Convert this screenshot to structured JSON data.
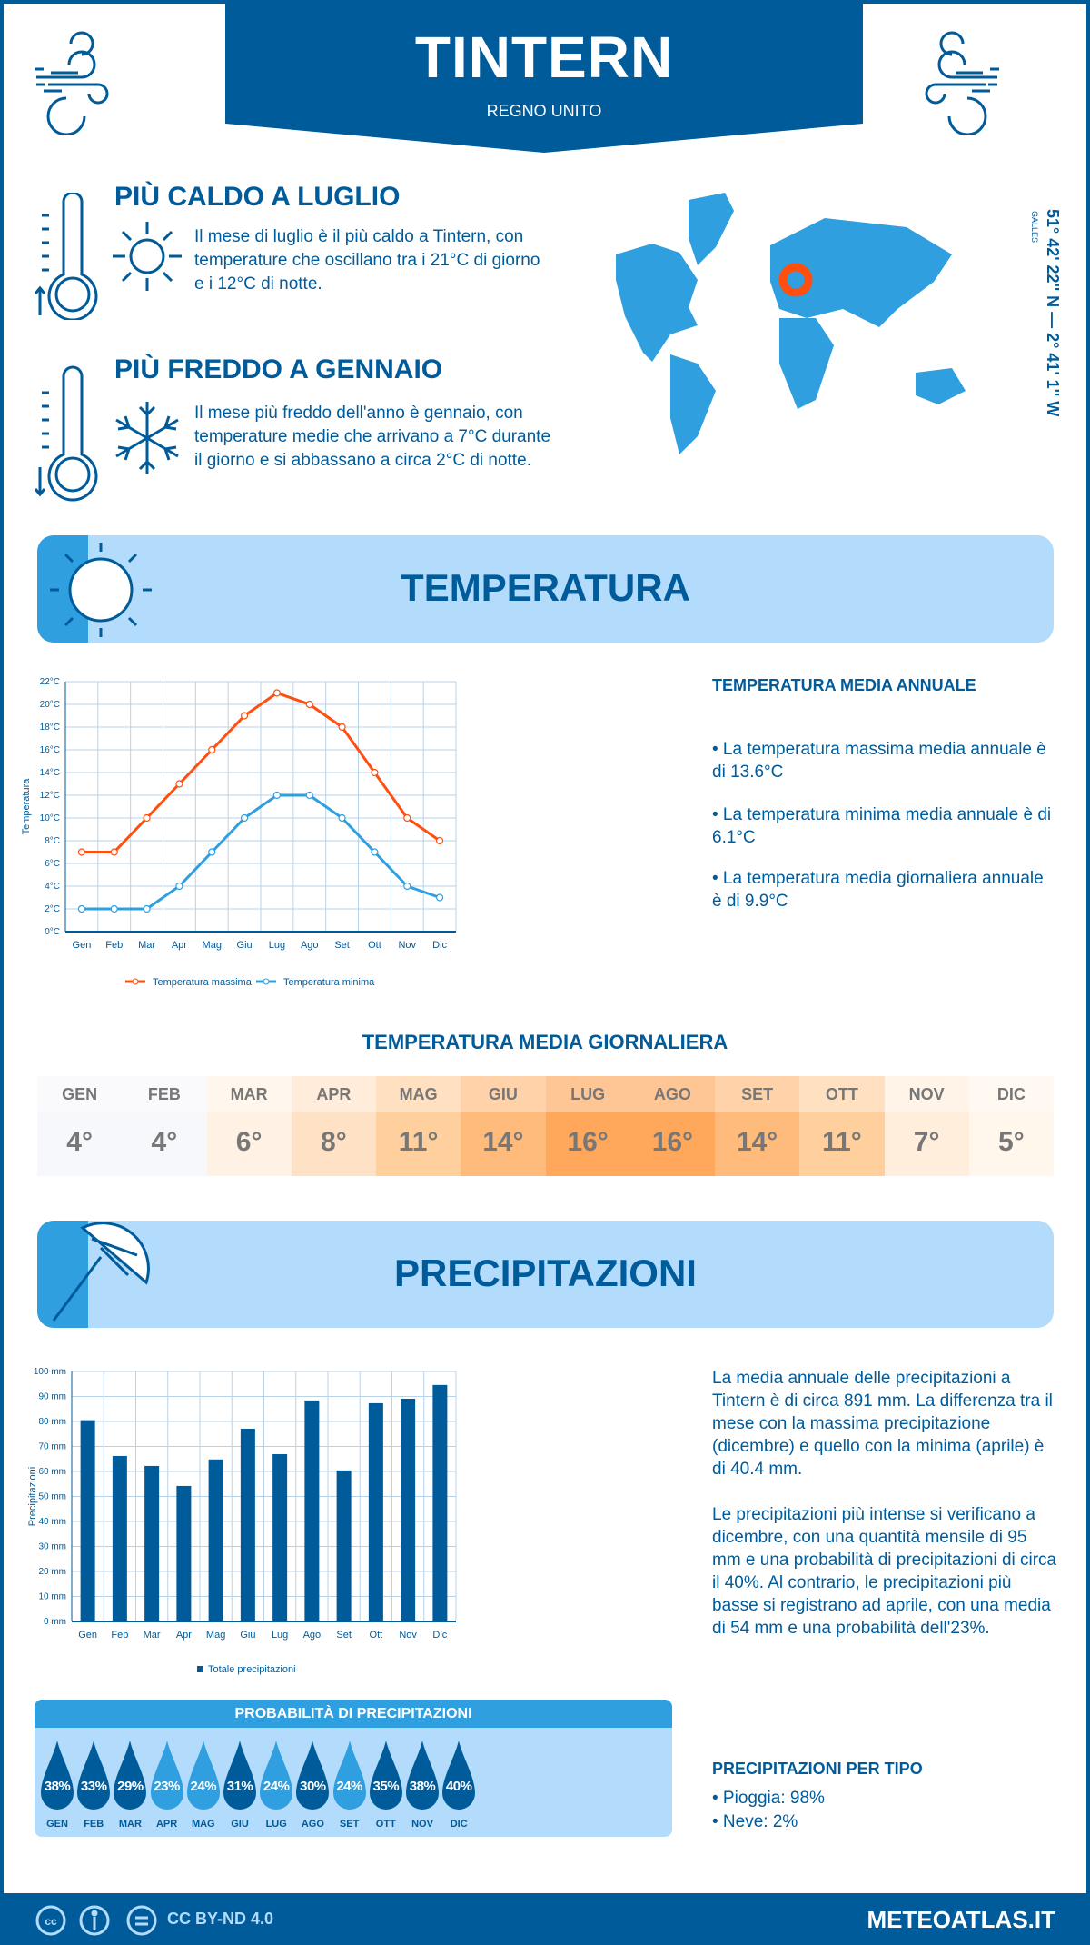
{
  "header": {
    "title": "TINTERN",
    "subtitle": "REGNO UNITO"
  },
  "highlights": {
    "hot": {
      "title": "PIÙ CALDO A LUGLIO",
      "text": "Il mese di luglio è il più caldo a Tintern, con temperature che oscillano tra i 21°C di giorno e i 12°C di notte."
    },
    "cold": {
      "title": "PIÙ FREDDO A GENNAIO",
      "text": "Il mese più freddo dell'anno è gennaio, con temperature medie che arrivano a 7°C durante il giorno e si abbassano a circa 2°C di notte."
    }
  },
  "location": {
    "coordinates": "51° 42' 22'' N — 2° 41' 1'' W",
    "region": "GALLES"
  },
  "temperature": {
    "section_title": "TEMPERATURA",
    "annual_title": "TEMPERATURA MEDIA ANNUALE",
    "annual_items": [
      "• La temperatura massima media annuale è di 13.6°C",
      "• La temperatura minima media annuale è di 6.1°C",
      "• La temperatura media giornaliera annuale è di 9.9°C"
    ],
    "daily_title": "TEMPERATURA MEDIA GIORNALIERA",
    "daily": [
      {
        "month": "GEN",
        "value": "4°",
        "color": "#f7f8fc"
      },
      {
        "month": "FEB",
        "value": "4°",
        "color": "#f7f8fc"
      },
      {
        "month": "MAR",
        "value": "6°",
        "color": "#fff2e4"
      },
      {
        "month": "APR",
        "value": "8°",
        "color": "#ffe2c6"
      },
      {
        "month": "MAG",
        "value": "11°",
        "color": "#ffd09e"
      },
      {
        "month": "GIU",
        "value": "14°",
        "color": "#ffbb7c"
      },
      {
        "month": "LUG",
        "value": "16°",
        "color": "#ffa85c"
      },
      {
        "month": "AGO",
        "value": "16°",
        "color": "#ffa85c"
      },
      {
        "month": "SET",
        "value": "14°",
        "color": "#ffbb7c"
      },
      {
        "month": "OTT",
        "value": "11°",
        "color": "#ffd09e"
      },
      {
        "month": "NOV",
        "value": "7°",
        "color": "#ffeedb"
      },
      {
        "month": "DIC",
        "value": "5°",
        "color": "#fff6ec"
      }
    ]
  },
  "precipitation": {
    "section_title": "PRECIPITAZIONI",
    "summary": "La media annuale delle precipitazioni a Tintern è di circa 891 mm. La differenza tra il mese con la massima precipitazione (dicembre) e quello con la minima (aprile) è di 40.4 mm.",
    "detail": "Le precipitazioni più intense si verificano a dicembre, con una quantità mensile di 95 mm e una probabilità di precipitazioni di circa il 40%. Al contrario, le precipitazioni più basse si registrano ad aprile, con una media di 54 mm e una probabilità dell'23%.",
    "probability_title": "PROBABILITÀ DI PRECIPITAZIONI",
    "probability": [
      {
        "month": "GEN",
        "value": "38%",
        "dark": true
      },
      {
        "month": "FEB",
        "value": "33%",
        "dark": true
      },
      {
        "month": "MAR",
        "value": "29%",
        "dark": true
      },
      {
        "month": "APR",
        "value": "23%",
        "dark": false
      },
      {
        "month": "MAG",
        "value": "24%",
        "dark": false
      },
      {
        "month": "GIU",
        "value": "31%",
        "dark": true
      },
      {
        "month": "LUG",
        "value": "24%",
        "dark": false
      },
      {
        "month": "AGO",
        "value": "30%",
        "dark": true
      },
      {
        "month": "SET",
        "value": "24%",
        "dark": false
      },
      {
        "month": "OTT",
        "value": "35%",
        "dark": true
      },
      {
        "month": "NOV",
        "value": "38%",
        "dark": true
      },
      {
        "month": "DIC",
        "value": "40%",
        "dark": true
      }
    ],
    "type_title": "PRECIPITAZIONI PER TIPO",
    "types": [
      "• Pioggia: 98%",
      "• Neve: 2%"
    ]
  },
  "chart_data": [
    {
      "type": "line",
      "categories": [
        "Gen",
        "Feb",
        "Mar",
        "Apr",
        "Mag",
        "Giu",
        "Lug",
        "Ago",
        "Set",
        "Ott",
        "Nov",
        "Dic"
      ],
      "ylabel": "Temperatura",
      "ylim": [
        0,
        22
      ],
      "yticks": [
        "0°C",
        "2°C",
        "4°C",
        "6°C",
        "8°C",
        "10°C",
        "12°C",
        "14°C",
        "16°C",
        "18°C",
        "20°C",
        "22°C"
      ],
      "grid": true,
      "legend": "bottom",
      "series": [
        {
          "name": "Temperatura massima",
          "color": "#ff4f0f",
          "values": [
            7,
            7,
            10,
            13,
            16,
            19,
            21,
            20,
            18,
            14,
            10,
            8
          ]
        },
        {
          "name": "Temperatura minima",
          "color": "#2f9fdf",
          "values": [
            2,
            2,
            2,
            4,
            7,
            10,
            12,
            12,
            10,
            7,
            4,
            3
          ]
        }
      ]
    },
    {
      "type": "bar",
      "categories": [
        "Gen",
        "Feb",
        "Mar",
        "Apr",
        "Mag",
        "Giu",
        "Lug",
        "Ago",
        "Set",
        "Ott",
        "Nov",
        "Dic"
      ],
      "ylabel": "Precipitazioni",
      "ylim": [
        0,
        100
      ],
      "yticks": [
        "0 mm",
        "10 mm",
        "20 mm",
        "30 mm",
        "40 mm",
        "50 mm",
        "60 mm",
        "70 mm",
        "80 mm",
        "90 mm",
        "100 mm"
      ],
      "grid": true,
      "legend": "bottom",
      "series": [
        {
          "name": "Totale precipitazioni",
          "color": "#005b9a",
          "values": [
            80.5,
            66.2,
            62.2,
            54.2,
            64.8,
            77.1,
            66.9,
            88.4,
            60.4,
            87.3,
            89.1,
            94.6
          ]
        }
      ]
    }
  ],
  "footer": {
    "license": "CC BY-ND 4.0",
    "site": "METEOATLAS.IT"
  },
  "colors": {
    "dark": "#005b9a",
    "light": "#2f9fdf",
    "pale": "#b3dcfc",
    "accent": "#ff4f0f"
  }
}
